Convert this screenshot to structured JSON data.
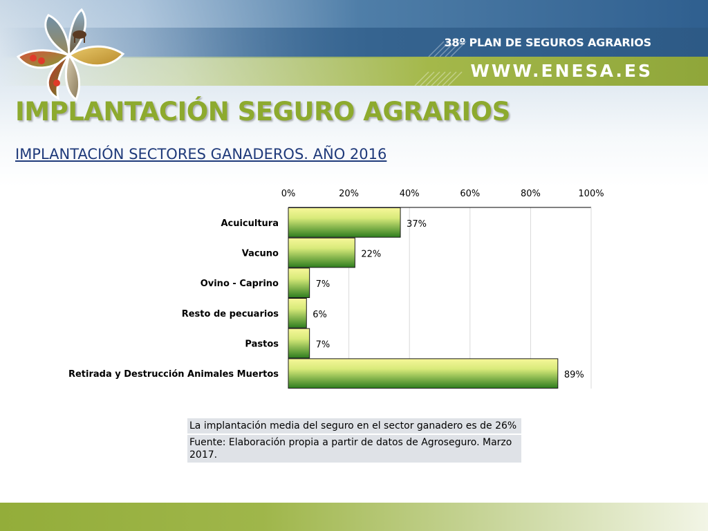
{
  "header": {
    "plan_title": "38º PLAN DE SEGUROS AGRARIOS",
    "url": "WWW.ENESA.ES"
  },
  "slide": {
    "title": "IMPLANTACIÓN SEGURO AGRARIOS",
    "subtitle": "IMPLANTACIÓN SECTORES GANADEROS. AÑO 2016"
  },
  "notes": {
    "line1": "La implantación media del seguro en el sector ganadero  es de 26%",
    "line2": "Fuente: Elaboración propia a partir de datos de Agroseguro. Marzo 2017."
  },
  "colors": {
    "title_green": "#8daa2e",
    "subtitle_blue": "#1f3a7a",
    "bar_top": "#f7f79a",
    "bar_bottom": "#2e7d1e"
  },
  "chart_data": {
    "type": "bar",
    "orientation": "horizontal",
    "categories": [
      "Acuicultura",
      "Vacuno",
      "Ovino - Caprino",
      "Resto de pecuarios",
      "Pastos",
      "Retirada y Destrucción Animales Muertos"
    ],
    "values": [
      37,
      22,
      7,
      6,
      7,
      89
    ],
    "data_labels": [
      "37%",
      "22%",
      "7%",
      "6%",
      "7%",
      "89%"
    ],
    "x_ticks": [
      "0%",
      "20%",
      "40%",
      "60%",
      "80%",
      "100%"
    ],
    "xlim": [
      0,
      100
    ],
    "x_axis_position": "top",
    "grid": true,
    "legend": "none"
  }
}
